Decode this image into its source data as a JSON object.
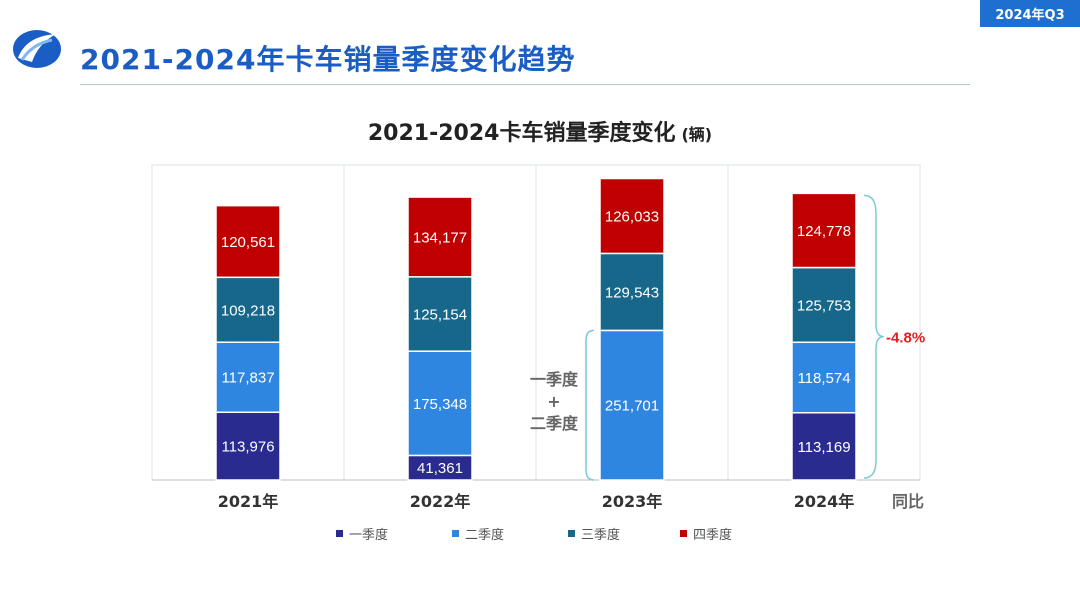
{
  "header": {
    "tag": "2024年Q3",
    "title": "2021-2024年卡车销量季度变化趋势"
  },
  "colors": {
    "q1": "#2a2b8f",
    "q2": "#2e86e0",
    "q3": "#17678a",
    "q4": "#c00000",
    "brand": "#1a5dc4",
    "brace": "#7cc9d9",
    "yoy": "#e02020"
  },
  "chart_data": {
    "type": "bar",
    "stacked": true,
    "title": "2021-2024卡车销量季度变化",
    "unit": "(辆)",
    "categories": [
      "2021年",
      "2022年",
      "2023年",
      "2024年"
    ],
    "series": [
      {
        "name": "一季度",
        "values": [
          113976,
          41361,
          null,
          113169
        ]
      },
      {
        "name": "二季度",
        "values": [
          117837,
          175348,
          251701,
          118574
        ]
      },
      {
        "name": "三季度",
        "values": [
          109218,
          125154,
          129543,
          125753
        ]
      },
      {
        "name": "四季度",
        "values": [
          120561,
          134177,
          126033,
          124778
        ]
      }
    ],
    "ylim": [
      0,
      530000
    ],
    "grid": false,
    "legend": "bottom",
    "annotations": {
      "combined_label_lines": [
        "一季度",
        "+",
        "二季度"
      ],
      "yoy_label": "同比",
      "yoy_value": "-4.8%"
    }
  }
}
